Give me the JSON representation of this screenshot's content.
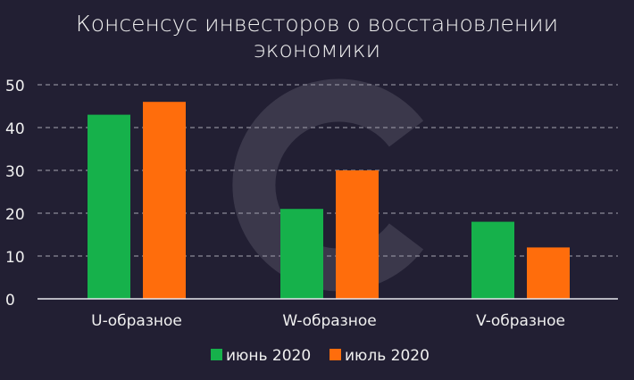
{
  "chart_data": {
    "type": "bar",
    "title": "Консенсус инвесторов о восстановлении\nэкономики",
    "categories": [
      "U-образное",
      "W-образное",
      "V-образное"
    ],
    "series": [
      {
        "name": "июнь 2020",
        "color": "#16b14b",
        "values": [
          43,
          21,
          18
        ]
      },
      {
        "name": "июль 2020",
        "color": "#ff6d0c",
        "values": [
          46,
          30,
          12
        ]
      }
    ],
    "ylim": [
      0,
      50
    ],
    "yticks": [
      0,
      10,
      20,
      30,
      40,
      50
    ],
    "xlabel": "",
    "ylabel": "",
    "grid": true,
    "legend_position": "bottom-center"
  }
}
